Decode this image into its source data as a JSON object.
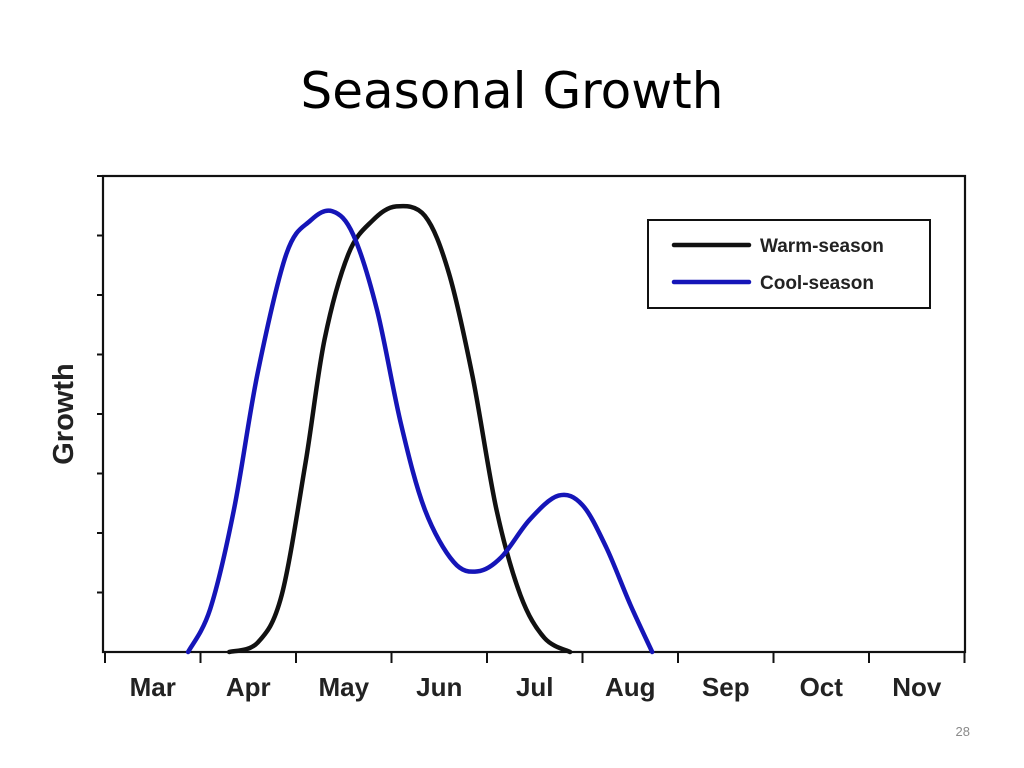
{
  "slide": {
    "title": "Seasonal Growth",
    "page_number": "28"
  },
  "chart_data": {
    "type": "line",
    "title": "",
    "xlabel": "",
    "ylabel": "Growth",
    "categories": [
      "Mar",
      "Apr",
      "May",
      "Jun",
      "Jul",
      "Aug",
      "Sep",
      "Oct",
      "Nov"
    ],
    "ylim": [
      0,
      100
    ],
    "y_tick_labels_shown": false,
    "grid": false,
    "legend_position": "top-right",
    "series": [
      {
        "name": "Warm-season",
        "color": "#111111",
        "points": [
          [
            1.3,
            0
          ],
          [
            1.6,
            2
          ],
          [
            1.85,
            12
          ],
          [
            2.1,
            40
          ],
          [
            2.3,
            66
          ],
          [
            2.55,
            84
          ],
          [
            2.8,
            91
          ],
          [
            3.05,
            94
          ],
          [
            3.35,
            92
          ],
          [
            3.6,
            80
          ],
          [
            3.85,
            58
          ],
          [
            4.1,
            30
          ],
          [
            4.35,
            12
          ],
          [
            4.6,
            3
          ],
          [
            4.87,
            0
          ]
        ]
      },
      {
        "name": "Cool-season",
        "color": "#1515b8",
        "points": [
          [
            0.87,
            0
          ],
          [
            1.1,
            9
          ],
          [
            1.35,
            30
          ],
          [
            1.6,
            59
          ],
          [
            1.9,
            84
          ],
          [
            2.15,
            91
          ],
          [
            2.38,
            93
          ],
          [
            2.6,
            88
          ],
          [
            2.85,
            72
          ],
          [
            3.1,
            48
          ],
          [
            3.35,
            30
          ],
          [
            3.65,
            19
          ],
          [
            3.9,
            17
          ],
          [
            4.15,
            20
          ],
          [
            4.45,
            28
          ],
          [
            4.75,
            33
          ],
          [
            5.0,
            31
          ],
          [
            5.25,
            22
          ],
          [
            5.5,
            10
          ],
          [
            5.73,
            0
          ]
        ]
      }
    ]
  }
}
